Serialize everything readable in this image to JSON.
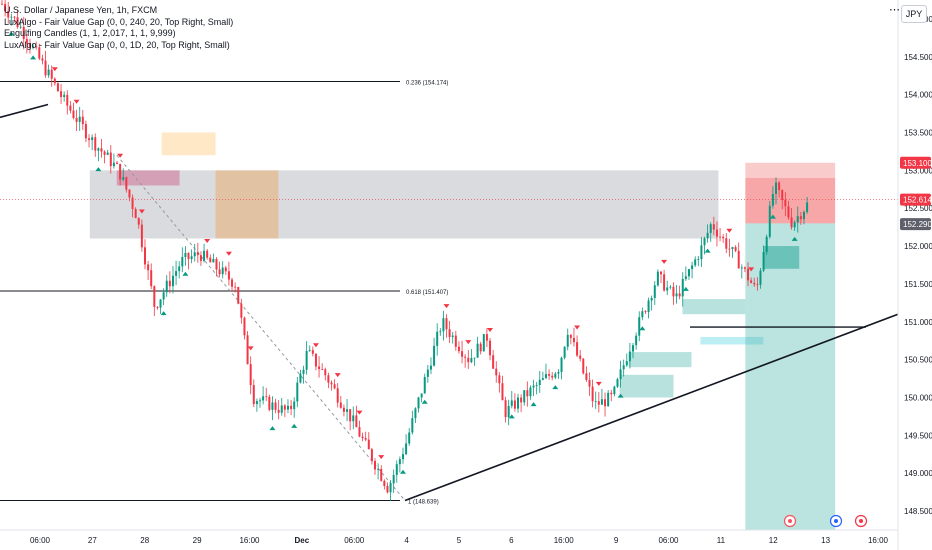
{
  "header": {
    "title": "U.S. Dollar / Japanese Yen, 1h, FXCM",
    "indicators": [
      "LuxAlgo - Fair Value Gap (0, 0, 240, 20, Top Right, Small)",
      "Engulfing Candles (1, 1, 2,017, 1, 1, 9,999)",
      "LuxAlgo - Fair Value Gap (0, 0, 1D, 20, Top Right, Small)"
    ],
    "currency": "JPY",
    "more_icon": "dots-icon"
  },
  "chart_data": {
    "type": "candlestick",
    "symbol": "USDJPY",
    "y_axis": {
      "ticks": [
        155.0,
        154.5,
        154.0,
        153.5,
        153.0,
        152.5,
        152.0,
        151.5,
        151.0,
        150.5,
        150.0,
        149.5,
        149.0,
        148.5
      ],
      "tick_labels": [
        "155.000",
        "154.500",
        "154.000",
        "153.500",
        "153.000",
        "152.500",
        "152.000",
        "151.500",
        "151.000",
        "150.500",
        "150.000",
        "149.500",
        "149.000",
        "148.500"
      ],
      "ylim": [
        148.25,
        155.25
      ]
    },
    "x_axis": {
      "labels": [
        "06:00",
        "27",
        "28",
        "29",
        "16:00",
        "Dec",
        "06:00",
        "4",
        "5",
        "6",
        "16:00",
        "9",
        "06:00",
        "11",
        "12",
        "13",
        "16:00"
      ],
      "label_index": [
        0,
        1,
        2,
        3,
        4,
        5,
        6,
        7,
        8,
        9,
        10,
        11,
        12,
        13,
        14,
        15,
        16
      ],
      "bold_labels": [
        "Dec"
      ]
    },
    "price_labels": [
      {
        "text": "153.100",
        "value": 153.1,
        "color": "#f23645"
      },
      {
        "text": "152.614",
        "value": 152.614,
        "color": "#f23645"
      },
      {
        "text": "152.290",
        "value": 152.29,
        "color": "#5d606b"
      }
    ],
    "fib_levels": [
      {
        "text": "0.236 (154.174)",
        "value": 154.174
      },
      {
        "text": "0.618 (151.407)",
        "value": 151.407
      },
      {
        "text": "1 (148.639)",
        "value": 148.639
      }
    ],
    "anchor_points": [
      {
        "value": 155.2,
        "t": 0.0
      },
      {
        "value": 154.9,
        "t": 0.02
      },
      {
        "value": 154.5,
        "t": 0.04
      },
      {
        "value": 153.9,
        "t": 0.07
      },
      {
        "value": 153.4,
        "t": 0.1
      },
      {
        "value": 153.0,
        "t": 0.13
      },
      {
        "value": 152.4,
        "t": 0.15
      },
      {
        "value": 151.2,
        "t": 0.17
      },
      {
        "value": 151.8,
        "t": 0.2
      },
      {
        "value": 151.9,
        "t": 0.22
      },
      {
        "value": 151.5,
        "t": 0.26
      },
      {
        "value": 150.0,
        "t": 0.28
      },
      {
        "value": 149.8,
        "t": 0.32
      },
      {
        "value": 150.6,
        "t": 0.34
      },
      {
        "value": 150.3,
        "t": 0.36
      },
      {
        "value": 149.7,
        "t": 0.39
      },
      {
        "value": 148.8,
        "t": 0.43
      },
      {
        "value": 149.4,
        "t": 0.45
      },
      {
        "value": 150.2,
        "t": 0.47
      },
      {
        "value": 151.0,
        "t": 0.49
      },
      {
        "value": 150.5,
        "t": 0.52
      },
      {
        "value": 150.8,
        "t": 0.54
      },
      {
        "value": 149.8,
        "t": 0.56
      },
      {
        "value": 150.2,
        "t": 0.6
      },
      {
        "value": 150.4,
        "t": 0.62
      },
      {
        "value": 150.9,
        "t": 0.63
      },
      {
        "value": 149.9,
        "t": 0.66
      },
      {
        "value": 150.0,
        "t": 0.68
      },
      {
        "value": 150.7,
        "t": 0.7
      },
      {
        "value": 151.6,
        "t": 0.73
      },
      {
        "value": 151.3,
        "t": 0.75
      },
      {
        "value": 152.0,
        "t": 0.78
      },
      {
        "value": 152.3,
        "t": 0.79
      },
      {
        "value": 151.8,
        "t": 0.82
      },
      {
        "value": 151.4,
        "t": 0.84
      },
      {
        "value": 152.8,
        "t": 0.86
      },
      {
        "value": 152.3,
        "t": 0.88
      },
      {
        "value": 152.6,
        "t": 0.9
      }
    ],
    "zones": [
      {
        "name": "supply-zone",
        "x0": 0.1,
        "x1": 0.8,
        "y0": 153.0,
        "y1": 152.1,
        "color": "#9598a1",
        "opacity": 0.35
      },
      {
        "name": "fvg-orange-top",
        "x0": 0.18,
        "x1": 0.24,
        "y0": 153.5,
        "y1": 153.2,
        "color": "#ffcc80",
        "opacity": 0.45
      },
      {
        "name": "fvg-orange-mid",
        "x0": 0.24,
        "x1": 0.31,
        "y0": 153.0,
        "y1": 152.1,
        "color": "#e8a55c",
        "opacity": 0.45
      },
      {
        "name": "fvg-red-top",
        "x0": 0.13,
        "x1": 0.2,
        "y0": 153.0,
        "y1": 152.8,
        "color": "#c2185b",
        "opacity": 0.3
      },
      {
        "name": "fvg-teal-1",
        "x0": 0.7,
        "x1": 0.77,
        "y0": 150.6,
        "y1": 150.4,
        "color": "#4db6ac",
        "opacity": 0.4
      },
      {
        "name": "fvg-teal-2",
        "x0": 0.69,
        "x1": 0.75,
        "y0": 150.3,
        "y1": 150.0,
        "color": "#4db6ac",
        "opacity": 0.4
      },
      {
        "name": "fvg-teal-3",
        "x0": 0.76,
        "x1": 0.83,
        "y0": 151.3,
        "y1": 151.1,
        "color": "#4db6ac",
        "opacity": 0.4
      },
      {
        "name": "fvg-teal-4",
        "x0": 0.78,
        "x1": 0.85,
        "y0": 150.8,
        "y1": 150.7,
        "color": "#26c6da",
        "opacity": 0.3
      },
      {
        "name": "fvg-teal-dark",
        "x0": 0.85,
        "x1": 0.89,
        "y0": 152.0,
        "y1": 151.7,
        "color": "#26a69a",
        "opacity": 0.6
      },
      {
        "name": "stop-zone",
        "x0": 0.83,
        "x1": 0.93,
        "y0": 153.1,
        "y1": 152.9,
        "color": "#f7a8a8",
        "opacity": 0.6
      },
      {
        "name": "stop-zone-inner",
        "x0": 0.83,
        "x1": 0.93,
        "y0": 152.9,
        "y1": 152.3,
        "color": "#f26d6d",
        "opacity": 0.6
      },
      {
        "name": "target-zone",
        "x0": 0.83,
        "x1": 0.93,
        "y0": 152.3,
        "y1": 148.25,
        "color": "#4db6ac",
        "opacity": 0.38
      }
    ],
    "event_icons": [
      "lightning-icon",
      "us-flag-icon",
      "record-icon"
    ]
  }
}
